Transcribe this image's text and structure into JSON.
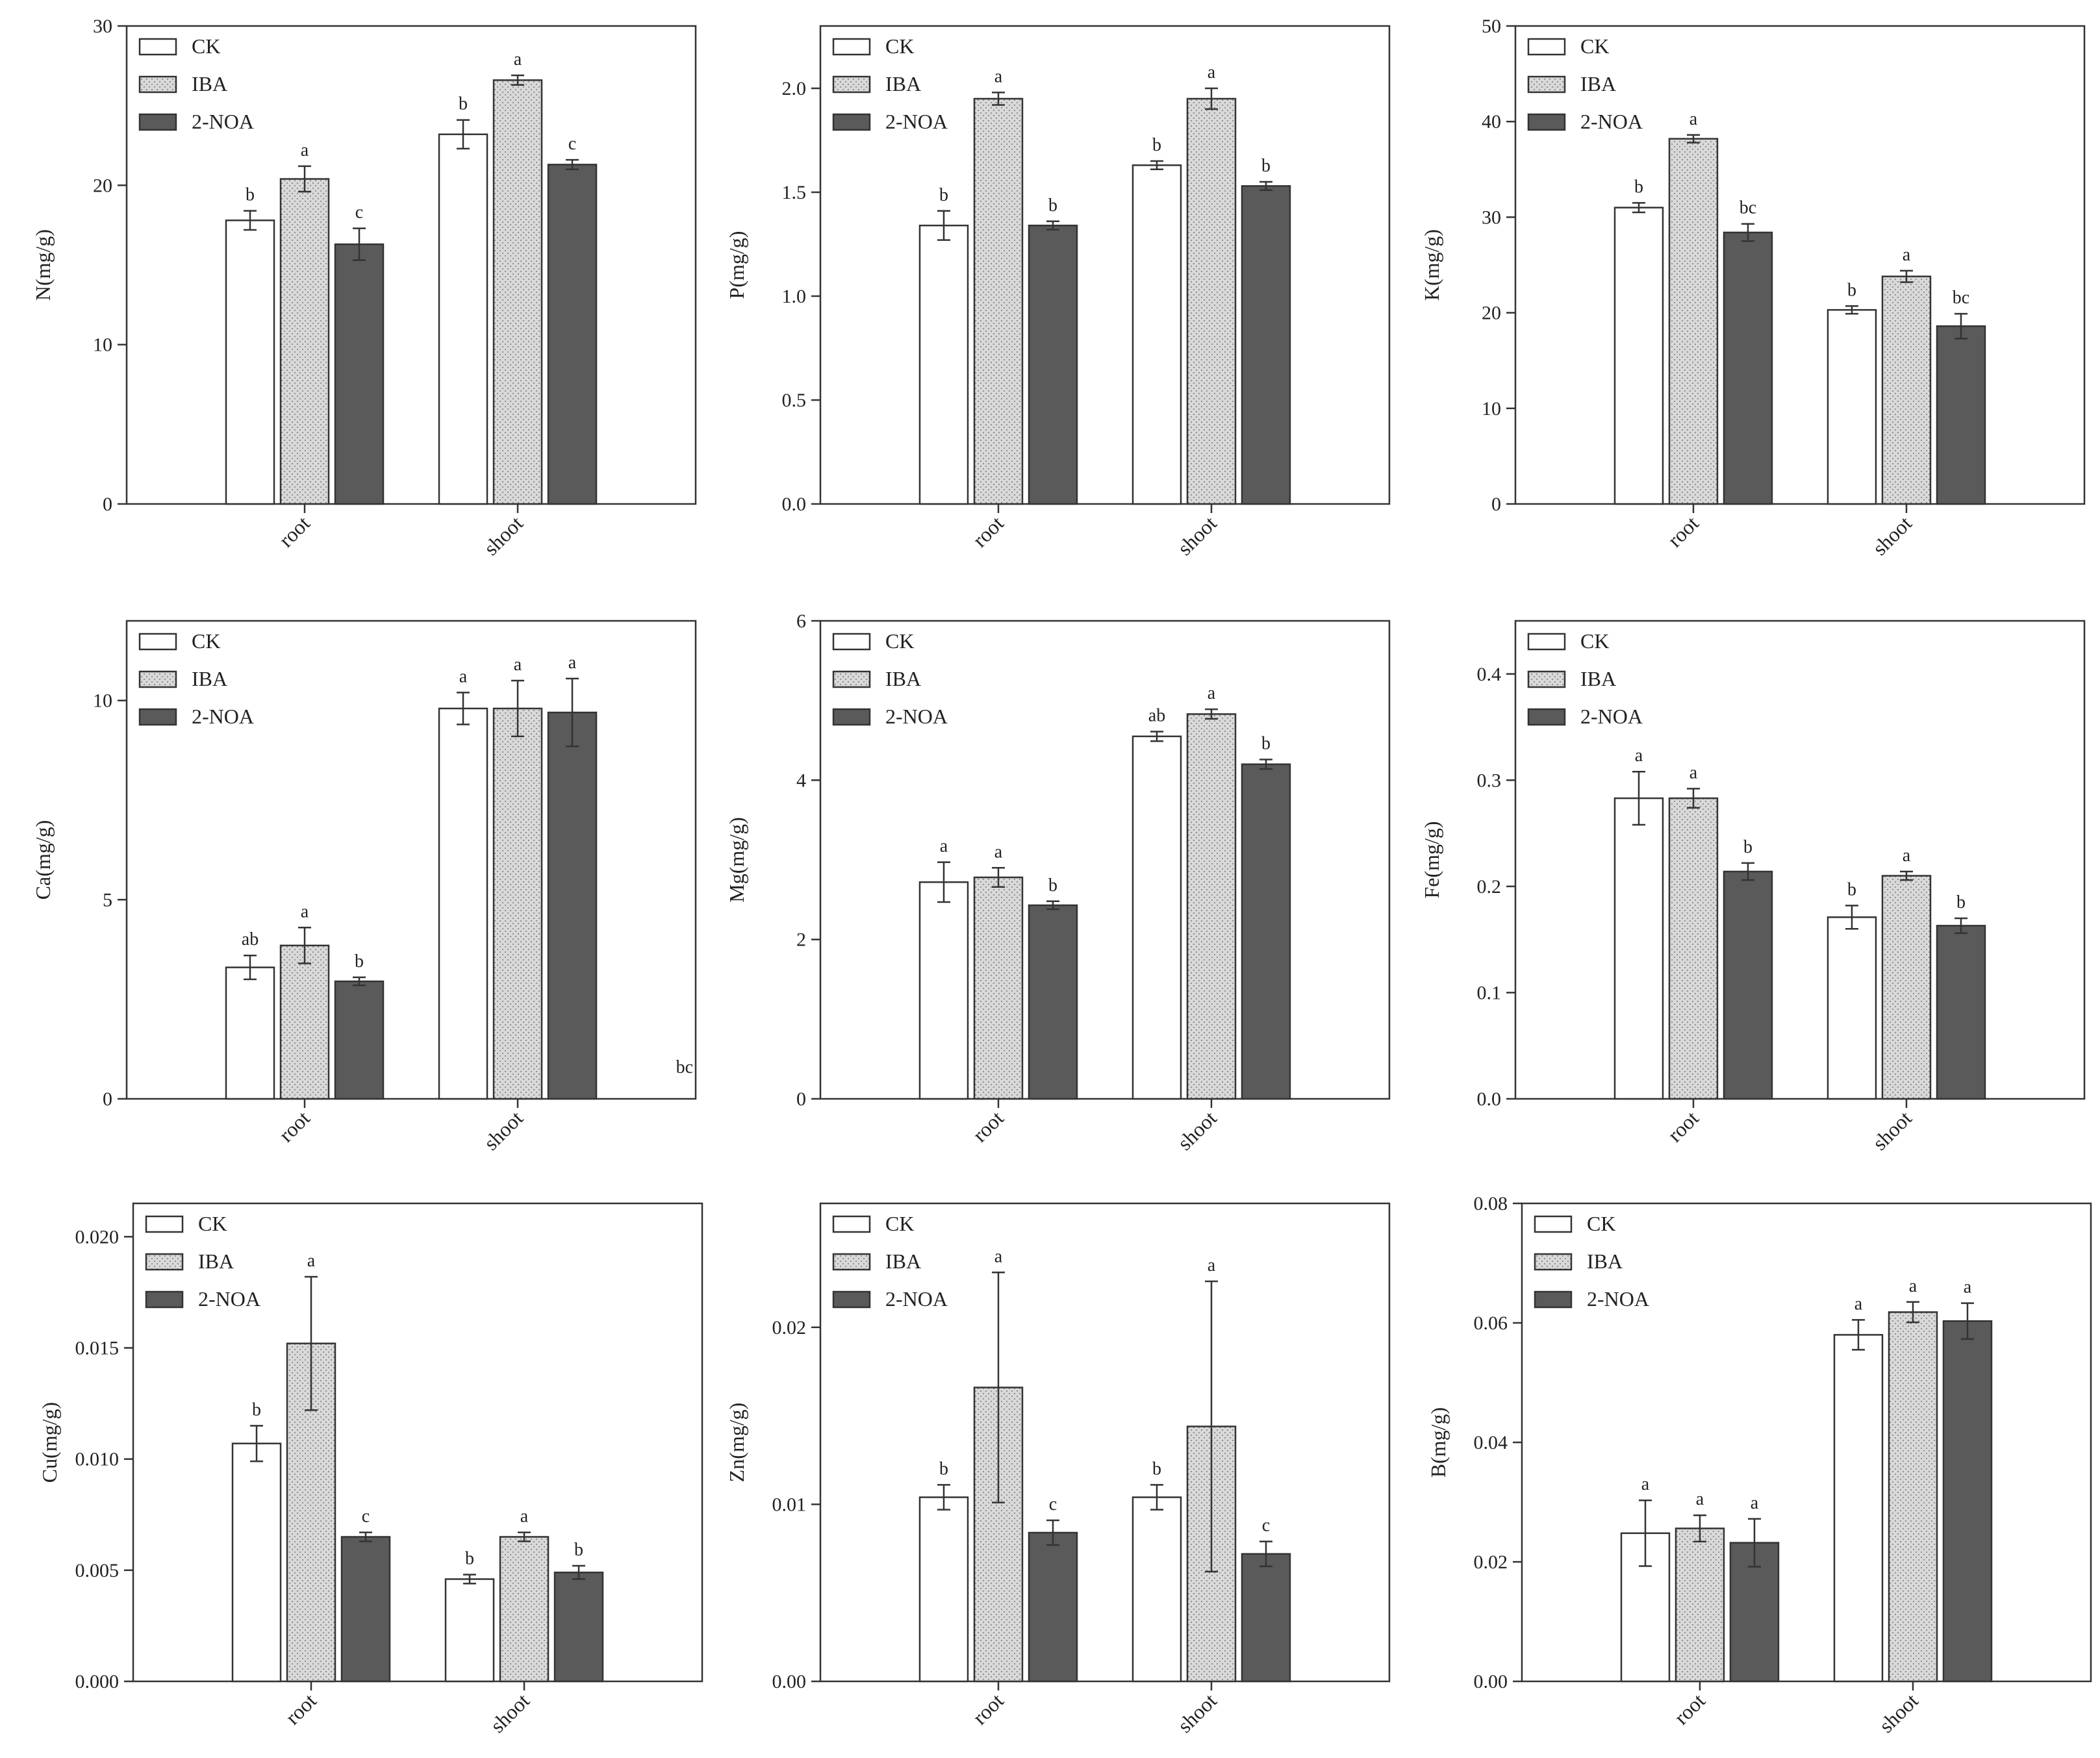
{
  "legend_labels": [
    "CK",
    "IBA",
    "2-NOA"
  ],
  "colors": {
    "CK": "#ffffff",
    "IBA": "#d9d9d9",
    "2-NOA": "#5a5a5a",
    "axis": "#333333"
  },
  "chart_data": [
    {
      "type": "bar",
      "title": "",
      "ylabel": "N(mg/g)",
      "xlabel": "",
      "categories": [
        "root",
        "shoot"
      ],
      "ylim": [
        0,
        30
      ],
      "yticks": [
        0,
        10,
        20,
        30
      ],
      "ytick_labels": [
        "0",
        "10",
        "20",
        "30"
      ],
      "legend": "top-left",
      "grid": false,
      "series": [
        {
          "name": "CK",
          "values": [
            17.8,
            23.2
          ],
          "errors": [
            0.6,
            0.9
          ],
          "labels": [
            "b",
            "b"
          ]
        },
        {
          "name": "IBA",
          "values": [
            20.4,
            26.6
          ],
          "errors": [
            0.8,
            0.3
          ],
          "labels": [
            "a",
            "a"
          ]
        },
        {
          "name": "2-NOA",
          "values": [
            16.3,
            21.3
          ],
          "errors": [
            1.0,
            0.3
          ],
          "labels": [
            "c",
            "c"
          ]
        }
      ]
    },
    {
      "type": "bar",
      "title": "",
      "ylabel": "P(mg/g)",
      "xlabel": "",
      "categories": [
        "root",
        "shoot"
      ],
      "ylim": [
        0,
        2.3
      ],
      "yticks": [
        0,
        0.5,
        1.0,
        1.5,
        2.0
      ],
      "ytick_labels": [
        "0.0",
        "0.5",
        "1.0",
        "1.5",
        "2.0"
      ],
      "legend": "top-left",
      "grid": false,
      "series": [
        {
          "name": "CK",
          "values": [
            1.34,
            1.63
          ],
          "errors": [
            0.07,
            0.02
          ],
          "labels": [
            "b",
            "b"
          ]
        },
        {
          "name": "IBA",
          "values": [
            1.95,
            1.95
          ],
          "errors": [
            0.03,
            0.05
          ],
          "labels": [
            "a",
            "a"
          ]
        },
        {
          "name": "2-NOA",
          "values": [
            1.34,
            1.53
          ],
          "errors": [
            0.02,
            0.02
          ],
          "labels": [
            "b",
            "b"
          ]
        }
      ]
    },
    {
      "type": "bar",
      "title": "",
      "ylabel": "K(mg/g)",
      "xlabel": "",
      "categories": [
        "root",
        "shoot"
      ],
      "ylim": [
        0,
        50
      ],
      "yticks": [
        0,
        10,
        20,
        30,
        40,
        50
      ],
      "ytick_labels": [
        "0",
        "10",
        "20",
        "30",
        "40",
        "50"
      ],
      "legend": "top-left",
      "grid": false,
      "series": [
        {
          "name": "CK",
          "values": [
            31.0,
            20.3
          ],
          "errors": [
            0.5,
            0.4
          ],
          "labels": [
            "b",
            "b"
          ]
        },
        {
          "name": "IBA",
          "values": [
            38.2,
            23.8
          ],
          "errors": [
            0.4,
            0.6
          ],
          "labels": [
            "a",
            "a"
          ]
        },
        {
          "name": "2-NOA",
          "values": [
            28.4,
            18.6
          ],
          "errors": [
            0.9,
            1.3
          ],
          "labels": [
            "bc",
            "bc"
          ]
        }
      ]
    },
    {
      "type": "bar",
      "title": "",
      "ylabel": "Ca(mg/g)",
      "xlabel": "",
      "categories": [
        "root",
        "shoot"
      ],
      "ylim": [
        0,
        12
      ],
      "yticks": [
        0,
        5,
        10
      ],
      "ytick_labels": [
        "0",
        "5",
        "10"
      ],
      "legend": "top-left",
      "grid": false,
      "series": [
        {
          "name": "CK",
          "values": [
            3.3,
            9.8
          ],
          "errors": [
            0.3,
            0.4
          ],
          "labels": [
            "ab",
            "a"
          ]
        },
        {
          "name": "IBA",
          "values": [
            3.85,
            9.8
          ],
          "errors": [
            0.45,
            0.7
          ],
          "labels": [
            "a",
            "a"
          ]
        },
        {
          "name": "2-NOA",
          "values": [
            2.95,
            9.7
          ],
          "errors": [
            0.1,
            0.85
          ],
          "labels": [
            "b",
            "a"
          ]
        }
      ],
      "annotations": [
        "bc"
      ]
    },
    {
      "type": "bar",
      "title": "",
      "ylabel": "Mg(mg/g)",
      "xlabel": "",
      "categories": [
        "root",
        "shoot"
      ],
      "ylim": [
        0,
        6
      ],
      "yticks": [
        0,
        2,
        4,
        6
      ],
      "ytick_labels": [
        "0",
        "2",
        "4",
        "6"
      ],
      "legend": "top-left",
      "grid": false,
      "series": [
        {
          "name": "CK",
          "values": [
            2.72,
            4.55
          ],
          "errors": [
            0.25,
            0.06
          ],
          "labels": [
            "a",
            "ab"
          ]
        },
        {
          "name": "IBA",
          "values": [
            2.78,
            4.83
          ],
          "errors": [
            0.12,
            0.06
          ],
          "labels": [
            "a",
            "a"
          ]
        },
        {
          "name": "2-NOA",
          "values": [
            2.43,
            4.2
          ],
          "errors": [
            0.05,
            0.06
          ],
          "labels": [
            "b",
            "b"
          ]
        }
      ]
    },
    {
      "type": "bar",
      "title": "",
      "ylabel": "Fe(mg/g)",
      "xlabel": "",
      "categories": [
        "root",
        "shoot"
      ],
      "ylim": [
        0,
        0.45
      ],
      "yticks": [
        0,
        0.1,
        0.2,
        0.3,
        0.4
      ],
      "ytick_labels": [
        "0.0",
        "0.1",
        "0.2",
        "0.3",
        "0.4"
      ],
      "legend": "top-left",
      "grid": false,
      "series": [
        {
          "name": "CK",
          "values": [
            0.283,
            0.171
          ],
          "errors": [
            0.025,
            0.011
          ],
          "labels": [
            "a",
            "b"
          ]
        },
        {
          "name": "IBA",
          "values": [
            0.283,
            0.21
          ],
          "errors": [
            0.009,
            0.004
          ],
          "labels": [
            "a",
            "a"
          ]
        },
        {
          "name": "2-NOA",
          "values": [
            0.214,
            0.163
          ],
          "errors": [
            0.008,
            0.007
          ],
          "labels": [
            "b",
            "b"
          ]
        }
      ]
    },
    {
      "type": "bar",
      "title": "",
      "ylabel": "Cu(mg/g)",
      "xlabel": "",
      "categories": [
        "root",
        "shoot"
      ],
      "ylim": [
        0,
        0.0215
      ],
      "yticks": [
        0,
        0.005,
        0.01,
        0.015,
        0.02
      ],
      "ytick_labels": [
        "0.000",
        "0.005",
        "0.010",
        "0.015",
        "0.020"
      ],
      "legend": "top-left",
      "grid": false,
      "series": [
        {
          "name": "CK",
          "values": [
            0.0107,
            0.0046
          ],
          "errors": [
            0.0008,
            0.0002
          ],
          "labels": [
            "b",
            "b"
          ]
        },
        {
          "name": "IBA",
          "values": [
            0.0152,
            0.0065
          ],
          "errors": [
            0.003,
            0.0002
          ],
          "labels": [
            "a",
            "a"
          ]
        },
        {
          "name": "2-NOA",
          "values": [
            0.0065,
            0.0049
          ],
          "errors": [
            0.0002,
            0.0003
          ],
          "labels": [
            "c",
            "b"
          ]
        }
      ]
    },
    {
      "type": "bar",
      "title": "",
      "ylabel": "Zn(mg/g)",
      "xlabel": "",
      "categories": [
        "root",
        "shoot"
      ],
      "ylim": [
        0,
        0.027
      ],
      "yticks": [
        0,
        0.01,
        0.02
      ],
      "ytick_labels": [
        "0.00",
        "0.01",
        "0.02"
      ],
      "legend": "top-left",
      "grid": false,
      "series": [
        {
          "name": "CK",
          "values": [
            0.0104,
            0.0104
          ],
          "errors": [
            0.0007,
            0.0007
          ],
          "labels": [
            "b",
            "b"
          ]
        },
        {
          "name": "IBA",
          "values": [
            0.0166,
            0.0144
          ],
          "errors": [
            0.0065,
            0.0082
          ],
          "labels": [
            "a",
            "a"
          ]
        },
        {
          "name": "2-NOA",
          "values": [
            0.0084,
            0.0072
          ],
          "errors": [
            0.0007,
            0.0007
          ],
          "labels": [
            "c",
            "c"
          ]
        }
      ]
    },
    {
      "type": "bar",
      "title": "",
      "ylabel": "B(mg/g)",
      "xlabel": "",
      "categories": [
        "root",
        "shoot"
      ],
      "ylim": [
        0,
        0.08
      ],
      "yticks": [
        0,
        0.02,
        0.04,
        0.06,
        0.08
      ],
      "ytick_labels": [
        "0.00",
        "0.02",
        "0.04",
        "0.06",
        "0.08"
      ],
      "legend": "top-left",
      "grid": false,
      "series": [
        {
          "name": "CK",
          "values": [
            0.0248,
            0.058
          ],
          "errors": [
            0.0055,
            0.0025
          ],
          "labels": [
            "a",
            "a"
          ]
        },
        {
          "name": "IBA",
          "values": [
            0.0256,
            0.0618
          ],
          "errors": [
            0.0022,
            0.0017
          ],
          "labels": [
            "a",
            "a"
          ]
        },
        {
          "name": "2-NOA",
          "values": [
            0.0232,
            0.0603
          ],
          "errors": [
            0.004,
            0.003
          ],
          "labels": [
            "a",
            "a"
          ]
        }
      ]
    }
  ]
}
